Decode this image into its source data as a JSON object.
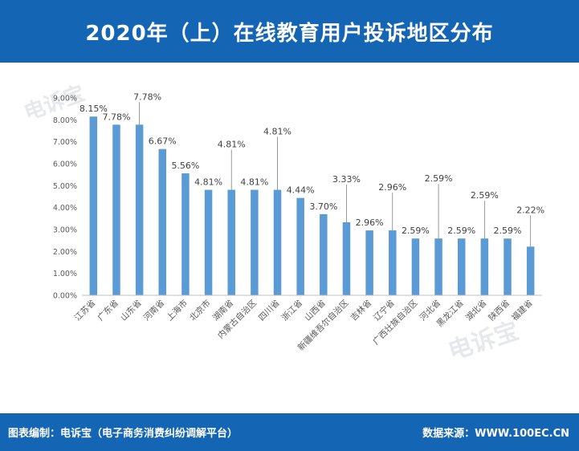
{
  "header": {
    "title": "2020年（上）在线教育用户投诉地区分布"
  },
  "footer": {
    "left_text": "图表编制：电诉宝（电子商务消费纠纷调解平台）",
    "right_text": "数据来源：WWW.100EC.CN"
  },
  "watermark": {
    "text": "电诉宝"
  },
  "colors": {
    "header_bg": "#1565b5",
    "bar": "#5b9bd5",
    "axis_text": "#595959",
    "label_text": "#404040"
  },
  "chart_data": {
    "type": "bar",
    "title": "",
    "xlabel": "",
    "ylabel": "",
    "ylim": [
      0,
      9
    ],
    "y_ticks": [
      "0.00%",
      "1.00%",
      "2.00%",
      "3.00%",
      "4.00%",
      "5.00%",
      "6.00%",
      "7.00%",
      "8.00%",
      "9.00%"
    ],
    "grid": false,
    "categories": [
      "江苏省",
      "广东省",
      "山东省",
      "河南省",
      "上海市",
      "北京市",
      "湖南省",
      "内蒙古自治区",
      "四川省",
      "浙江省",
      "山西省",
      "新疆维吾尔自治区",
      "吉林省",
      "辽宁省",
      "广西壮族自治区",
      "河北省",
      "黑龙江省",
      "湖北省",
      "陕西省",
      "福建省"
    ],
    "values": [
      8.15,
      7.78,
      7.78,
      6.67,
      5.56,
      4.81,
      4.81,
      4.81,
      4.81,
      4.44,
      3.7,
      3.33,
      2.96,
      2.96,
      2.59,
      2.59,
      2.59,
      2.59,
      2.59,
      2.22
    ],
    "data_labels": [
      "8.15%",
      "7.78%",
      "7.78%",
      "6.67%",
      "5.56%",
      "4.81%",
      "4.81%",
      "4.81%",
      "4.81%",
      "4.44%",
      "3.70%",
      "3.33%",
      "2.96%",
      "2.96%",
      "2.59%",
      "2.59%",
      "2.59%",
      "2.59%",
      "2.59%",
      "2.22%"
    ]
  }
}
